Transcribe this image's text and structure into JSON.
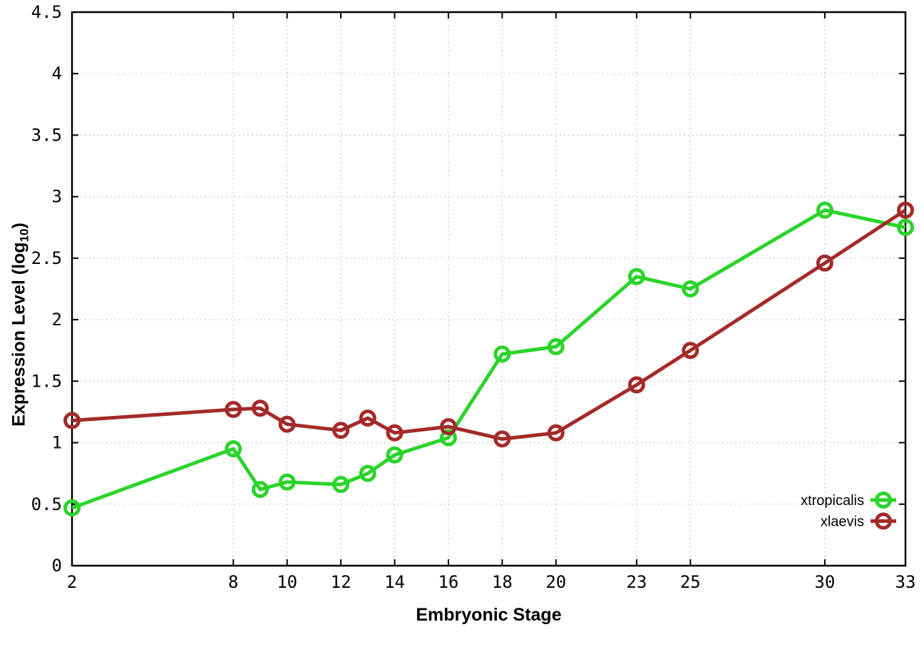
{
  "figure": {
    "background": "#ffffff",
    "xlabel": "Embryonic Stage",
    "ylabel_prefix": "Expression Level (log",
    "ylabel_subscript": "10",
    "ylabel_suffix": ")"
  },
  "chart_data": {
    "type": "line",
    "title": "",
    "xlabel": "Embryonic Stage",
    "ylabel": "Expression Level (log10)",
    "x": [
      2,
      8,
      9,
      10,
      12,
      13,
      14,
      16,
      18,
      20,
      23,
      25,
      30,
      33
    ],
    "series": [
      {
        "name": "xtropicalis",
        "color": "#2ad42a",
        "marker": "open-circle",
        "values": [
          0.47,
          0.95,
          0.62,
          0.68,
          0.66,
          0.75,
          0.9,
          1.04,
          1.72,
          1.78,
          2.35,
          2.25,
          2.89,
          2.75
        ]
      },
      {
        "name": "xlaevis",
        "color": "#a42a2a",
        "marker": "open-circle",
        "values": [
          1.18,
          1.27,
          1.28,
          1.15,
          1.1,
          1.2,
          1.08,
          1.13,
          1.03,
          1.08,
          1.47,
          1.75,
          2.46,
          2.89
        ]
      }
    ],
    "x_ticks": [
      2,
      8,
      10,
      12,
      14,
      16,
      18,
      20,
      23,
      25,
      30,
      33
    ],
    "y_ticks": [
      0,
      0.5,
      1,
      1.5,
      2,
      2.5,
      3,
      3.5,
      4,
      4.5
    ],
    "xlim": [
      2,
      33
    ],
    "ylim": [
      0,
      4.5
    ],
    "grid": true,
    "grid_color": "#bdbdbd",
    "axis_color": "#000000",
    "legend_position": "inside-bottom-right",
    "legend": [
      "xtropicalis",
      "xlaevis"
    ]
  }
}
